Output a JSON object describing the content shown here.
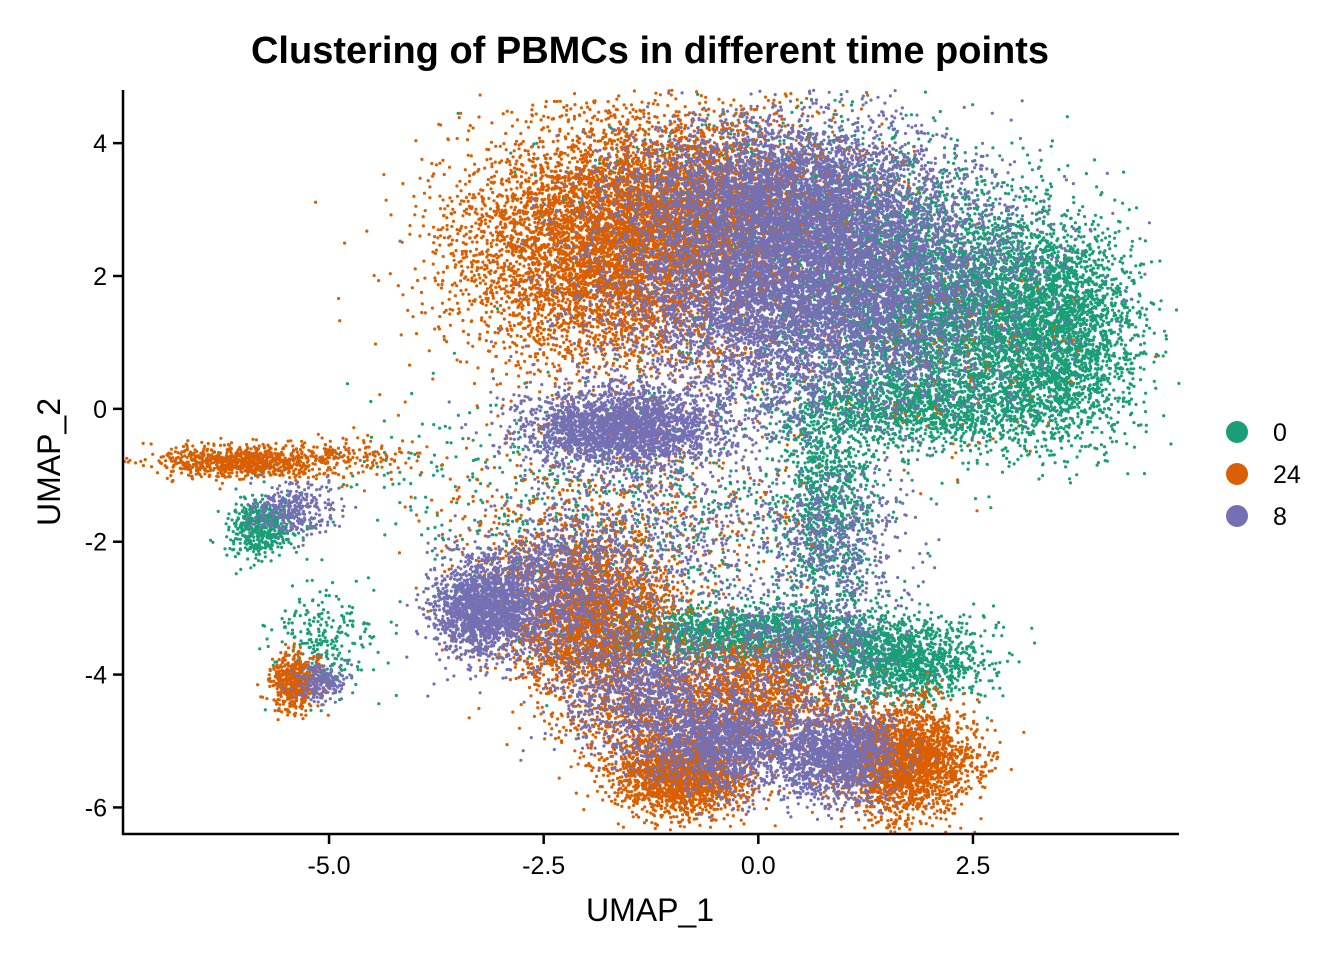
{
  "chart_data": {
    "type": "scatter",
    "title": "Clustering of PBMCs in different time points",
    "xlabel": "UMAP_1",
    "ylabel": "UMAP_2",
    "xlim": [
      -7.4,
      4.9
    ],
    "ylim": [
      -6.4,
      4.8
    ],
    "x_ticks": [
      -5.0,
      -2.5,
      0.0,
      2.5
    ],
    "x_tick_labels": [
      "-5.0",
      "-2.5",
      "0.0",
      "2.5"
    ],
    "y_ticks": [
      -6,
      -4,
      -2,
      0,
      2,
      4
    ],
    "y_tick_labels": [
      "-6",
      "-4",
      "-2",
      "0",
      "2",
      "4"
    ],
    "grid": false,
    "legend_position": "right",
    "series": [
      {
        "name": "0",
        "color": "#1B9E77"
      },
      {
        "name": "24",
        "color": "#D95F02"
      },
      {
        "name": "8",
        "color": "#7570B3"
      }
    ],
    "clusters": [
      {
        "series": "0",
        "cx": 1.1,
        "cy": 2.3,
        "sx": 1.0,
        "sy": 0.9,
        "n": 2000
      },
      {
        "series": "0",
        "cx": 2.4,
        "cy": 1.4,
        "sx": 0.8,
        "sy": 0.85,
        "n": 4000
      },
      {
        "series": "0",
        "cx": 3.5,
        "cy": 1.1,
        "sx": 0.45,
        "sy": 0.75,
        "n": 2200
      },
      {
        "series": "0",
        "cx": 1.8,
        "cy": 0.0,
        "sx": 0.9,
        "sy": 0.3,
        "n": 1200
      },
      {
        "series": "0",
        "cx": 0.8,
        "cy": -1.5,
        "sx": 0.3,
        "sy": 0.9,
        "n": 1000
      },
      {
        "series": "0",
        "cx": -0.2,
        "cy": -3.4,
        "sx": 0.9,
        "sy": 0.22,
        "n": 1800
      },
      {
        "series": "0",
        "cx": 1.6,
        "cy": -3.8,
        "sx": 0.5,
        "sy": 0.3,
        "n": 1400
      },
      {
        "series": "0",
        "cx": -5.8,
        "cy": -1.8,
        "sx": 0.2,
        "sy": 0.22,
        "n": 500
      },
      {
        "series": "0",
        "cx": -5.1,
        "cy": -3.5,
        "sx": 0.3,
        "sy": 0.4,
        "n": 250
      },
      {
        "series": "0",
        "cx": -1.5,
        "cy": -1.6,
        "sx": 1.2,
        "sy": 0.9,
        "n": 700
      },
      {
        "series": "0",
        "cx": -4.0,
        "cy": -1.0,
        "sx": 0.6,
        "sy": 0.5,
        "n": 60
      },
      {
        "series": "0",
        "cx": -0.5,
        "cy": 3.2,
        "sx": 1.0,
        "sy": 0.6,
        "n": 400
      },
      {
        "series": "24",
        "cx": -1.7,
        "cy": 2.4,
        "sx": 0.9,
        "sy": 0.9,
        "n": 6000
      },
      {
        "series": "24",
        "cx": -0.6,
        "cy": 3.1,
        "sx": 0.9,
        "sy": 0.7,
        "n": 2500
      },
      {
        "series": "24",
        "cx": -6.0,
        "cy": -0.8,
        "sx": 0.5,
        "sy": 0.12,
        "n": 900
      },
      {
        "series": "24",
        "cx": -4.8,
        "cy": -0.7,
        "sx": 0.4,
        "sy": 0.15,
        "n": 150
      },
      {
        "series": "24",
        "cx": -5.4,
        "cy": -4.1,
        "sx": 0.15,
        "sy": 0.22,
        "n": 500
      },
      {
        "series": "24",
        "cx": -2.0,
        "cy": -3.1,
        "sx": 0.5,
        "sy": 0.6,
        "n": 2500
      },
      {
        "series": "24",
        "cx": -0.9,
        "cy": -5.5,
        "sx": 0.4,
        "sy": 0.3,
        "n": 2000
      },
      {
        "series": "24",
        "cx": 1.7,
        "cy": -5.3,
        "sx": 0.4,
        "sy": 0.4,
        "n": 2500
      },
      {
        "series": "24",
        "cx": 0.0,
        "cy": -4.3,
        "sx": 0.5,
        "sy": 0.4,
        "n": 1200
      },
      {
        "series": "24",
        "cx": -1.8,
        "cy": -1.8,
        "sx": 1.0,
        "sy": 0.8,
        "n": 600
      },
      {
        "series": "24",
        "cx": 1.5,
        "cy": 1.0,
        "sx": 1.2,
        "sy": 0.8,
        "n": 200
      },
      {
        "series": "24",
        "cx": -1.2,
        "cy": -4.5,
        "sx": 0.6,
        "sy": 0.5,
        "n": 800
      },
      {
        "series": "8",
        "cx": 0.6,
        "cy": 2.0,
        "sx": 1.1,
        "sy": 1.0,
        "n": 9000
      },
      {
        "series": "8",
        "cx": 0.2,
        "cy": 3.3,
        "sx": 0.8,
        "sy": 0.5,
        "n": 2000
      },
      {
        "series": "8",
        "cx": -1.6,
        "cy": -0.3,
        "sx": 0.55,
        "sy": 0.3,
        "n": 2500
      },
      {
        "series": "8",
        "cx": -3.2,
        "cy": -3.0,
        "sx": 0.3,
        "sy": 0.35,
        "n": 1800
      },
      {
        "series": "8",
        "cx": -2.4,
        "cy": -2.7,
        "sx": 0.5,
        "sy": 0.6,
        "n": 1200
      },
      {
        "series": "8",
        "cx": -0.4,
        "cy": -5.0,
        "sx": 0.45,
        "sy": 0.35,
        "n": 1500
      },
      {
        "series": "8",
        "cx": 0.9,
        "cy": -5.2,
        "sx": 0.35,
        "sy": 0.35,
        "n": 1500
      },
      {
        "series": "8",
        "cx": -1.3,
        "cy": -4.2,
        "sx": 0.5,
        "sy": 0.5,
        "n": 1200
      },
      {
        "series": "8",
        "cx": -5.4,
        "cy": -1.5,
        "sx": 0.25,
        "sy": 0.2,
        "n": 300
      },
      {
        "series": "8",
        "cx": -5.1,
        "cy": -4.1,
        "sx": 0.15,
        "sy": 0.15,
        "n": 200
      },
      {
        "series": "8",
        "cx": 0.9,
        "cy": -2.0,
        "sx": 0.4,
        "sy": 0.6,
        "n": 500
      },
      {
        "series": "8",
        "cx": -1.0,
        "cy": -1.9,
        "sx": 0.8,
        "sy": 0.7,
        "n": 500
      },
      {
        "series": "8",
        "cx": 0.5,
        "cy": -3.6,
        "sx": 0.5,
        "sy": 0.4,
        "n": 600
      }
    ],
    "series_draw_order": [
      "0",
      "24",
      "8"
    ]
  }
}
